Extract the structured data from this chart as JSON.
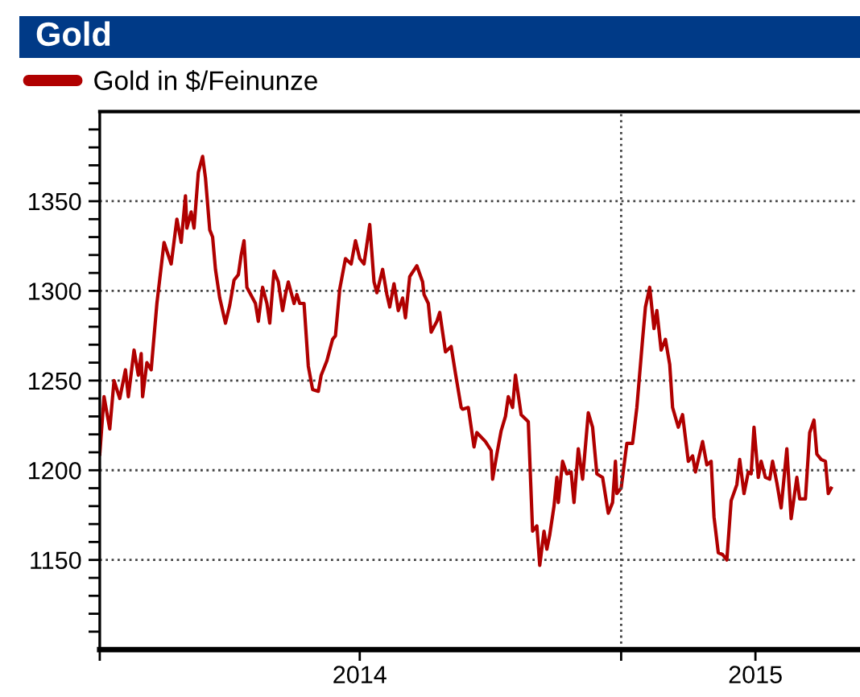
{
  "chart_data": {
    "type": "line",
    "title": "Gold",
    "x": [
      "2014-01-01",
      "2014-01-04",
      "2014-01-08",
      "2014-01-11",
      "2014-01-15",
      "2014-01-19",
      "2014-01-21",
      "2014-01-25",
      "2014-01-28",
      "2014-01-30",
      "2014-01-31",
      "2014-02-03",
      "2014-02-06",
      "2014-02-10",
      "2014-02-15",
      "2014-02-20",
      "2014-02-24",
      "2014-02-27",
      "2014-03-02",
      "2014-03-03",
      "2014-03-06",
      "2014-03-08",
      "2014-03-11",
      "2014-03-14",
      "2014-03-16",
      "2014-03-19",
      "2014-03-21",
      "2014-03-23",
      "2014-03-26",
      "2014-03-30",
      "2014-04-02",
      "2014-04-05",
      "2014-04-08",
      "2014-04-10",
      "2014-04-12",
      "2014-04-14",
      "2014-04-20",
      "2014-04-22",
      "2014-04-25",
      "2014-04-28",
      "2014-04-30",
      "2014-05-03",
      "2014-05-06",
      "2014-05-09",
      "2014-05-11",
      "2014-05-13",
      "2014-05-17",
      "2014-05-19",
      "2014-05-21",
      "2014-05-24",
      "2014-05-27",
      "2014-05-30",
      "2014-06-03",
      "2014-06-05",
      "2014-06-09",
      "2014-06-13",
      "2014-06-15",
      "2014-06-18",
      "2014-06-22",
      "2014-06-26",
      "2014-06-29",
      "2014-07-02",
      "2014-07-05",
      "2014-07-09",
      "2014-07-12",
      "2014-07-14",
      "2014-07-18",
      "2014-07-21",
      "2014-07-23",
      "2014-07-26",
      "2014-07-29",
      "2014-08-01",
      "2014-08-03",
      "2014-08-06",
      "2014-08-11",
      "2014-08-15",
      "2014-08-16",
      "2014-08-19",
      "2014-08-21",
      "2014-08-25",
      "2014-08-27",
      "2014-08-31",
      "2014-09-04",
      "2014-09-07",
      "2014-09-11",
      "2014-09-12",
      "2014-09-16",
      "2014-09-20",
      "2014-09-22",
      "2014-09-28",
      "2014-10-02",
      "2014-10-03",
      "2014-10-06",
      "2014-10-09",
      "2014-10-12",
      "2014-10-14",
      "2014-10-17",
      "2014-10-19",
      "2014-10-23",
      "2014-10-28",
      "2014-10-31",
      "2014-11-03",
      "2014-11-05",
      "2014-11-08",
      "2014-11-10",
      "2014-11-12",
      "2014-11-15",
      "2014-11-17",
      "2014-11-18",
      "2014-11-21",
      "2014-11-24",
      "2014-11-27",
      "2014-11-29",
      "2014-12-02",
      "2014-12-05",
      "2014-12-09",
      "2014-12-12",
      "2014-12-15",
      "2014-12-19",
      "2014-12-23",
      "2014-12-26",
      "2014-12-28",
      "2014-12-29",
      "2015-01-01",
      "2015-01-05",
      "2015-01-09",
      "2015-01-12",
      "2015-01-16",
      "2015-01-18",
      "2015-01-21",
      "2015-01-24",
      "2015-01-26",
      "2015-01-29",
      "2015-02-01",
      "2015-02-04",
      "2015-02-06",
      "2015-02-10",
      "2015-02-13",
      "2015-02-17",
      "2015-02-20",
      "2015-02-22",
      "2015-02-27",
      "2015-03-02",
      "2015-03-05",
      "2015-03-07",
      "2015-03-10",
      "2015-03-13",
      "2015-03-16",
      "2015-03-19",
      "2015-03-23",
      "2015-03-25",
      "2015-03-28",
      "2015-03-31",
      "2015-04-02",
      "2015-04-04",
      "2015-04-07",
      "2015-04-09",
      "2015-04-12",
      "2015-04-15",
      "2015-04-17",
      "2015-04-20",
      "2015-04-23",
      "2015-04-27",
      "2015-04-30",
      "2015-05-04",
      "2015-05-06",
      "2015-05-10",
      "2015-05-13",
      "2015-05-16",
      "2015-05-18",
      "2015-05-21",
      "2015-05-24",
      "2015-05-26",
      "2015-05-28"
    ],
    "series": [
      {
        "name": "Gold in $/Feinunze",
        "color": "#b00000",
        "values": [
          1209,
          1241,
          1223,
          1250,
          1240,
          1256,
          1241,
          1267,
          1253,
          1265,
          1241,
          1260,
          1256,
          1293,
          1327,
          1315,
          1340,
          1327,
          1353,
          1335,
          1344,
          1335,
          1366,
          1375,
          1363,
          1334,
          1330,
          1312,
          1296,
          1282,
          1292,
          1306,
          1309,
          1320,
          1328,
          1302,
          1293,
          1283,
          1302,
          1293,
          1282,
          1311,
          1305,
          1289,
          1298,
          1305,
          1293,
          1298,
          1293,
          1293,
          1258,
          1245,
          1244,
          1253,
          1261,
          1273,
          1275,
          1301,
          1318,
          1315,
          1328,
          1318,
          1315,
          1337,
          1305,
          1299,
          1312,
          1298,
          1291,
          1304,
          1289,
          1296,
          1285,
          1308,
          1314,
          1305,
          1298,
          1293,
          1277,
          1283,
          1288,
          1266,
          1269,
          1254,
          1235,
          1234,
          1235,
          1213,
          1221,
          1216,
          1211,
          1195,
          1209,
          1222,
          1230,
          1241,
          1235,
          1253,
          1231,
          1227,
          1166,
          1169,
          1147,
          1166,
          1156,
          1164,
          1180,
          1196,
          1182,
          1205,
          1198,
          1199,
          1182,
          1212,
          1195,
          1232,
          1224,
          1198,
          1196,
          1176,
          1182,
          1205,
          1187,
          1190,
          1215,
          1215,
          1235,
          1273,
          1291,
          1302,
          1279,
          1289,
          1267,
          1273,
          1259,
          1235,
          1224,
          1231,
          1205,
          1208,
          1199,
          1216,
          1203,
          1205,
          1174,
          1154,
          1153,
          1150,
          1183,
          1192,
          1206,
          1187,
          1199,
          1198,
          1224,
          1196,
          1205,
          1196,
          1195,
          1205,
          1193,
          1179,
          1212,
          1173,
          1196,
          1184,
          1184,
          1221,
          1228,
          1209,
          1206,
          1205,
          1187,
          1190
        ]
      }
    ],
    "xlim": [
      "2014-01-01",
      "2015-06-16"
    ],
    "xticks": [
      {
        "value": "2014-01-01",
        "label": null
      },
      {
        "value": "2014-07-02",
        "label": "2014"
      },
      {
        "value": "2015-01-01",
        "label": null
      },
      {
        "value": "2015-04-05",
        "label": "2015"
      }
    ],
    "ylim": [
      1100,
      1400
    ],
    "yticks": [
      {
        "value": 1110,
        "label": null
      },
      {
        "value": 1120,
        "label": null
      },
      {
        "value": 1130,
        "label": null
      },
      {
        "value": 1140,
        "label": null
      },
      1150,
      {
        "value": 1160,
        "label": null
      },
      {
        "value": 1170,
        "label": null
      },
      {
        "value": 1180,
        "label": null
      },
      {
        "value": 1190,
        "label": null
      },
      1200,
      {
        "value": 1210,
        "label": null
      },
      {
        "value": 1220,
        "label": null
      },
      {
        "value": 1230,
        "label": null
      },
      {
        "value": 1240,
        "label": null
      },
      1250,
      {
        "value": 1260,
        "label": null
      },
      {
        "value": 1270,
        "label": null
      },
      {
        "value": 1280,
        "label": null
      },
      {
        "value": 1290,
        "label": null
      },
      1300,
      {
        "value": 1310,
        "label": null
      },
      {
        "value": 1320,
        "label": null
      },
      {
        "value": 1330,
        "label": null
      },
      {
        "value": 1340,
        "label": null
      },
      1350,
      {
        "value": 1360,
        "label": null
      },
      {
        "value": 1370,
        "label": null
      },
      {
        "value": 1380,
        "label": null
      },
      {
        "value": 1390,
        "label": null
      }
    ],
    "grid": "y",
    "ref_lines": [
      {
        "axis": "x",
        "value": "2015-01-01",
        "line_style": "dotted",
        "color": "#444444"
      }
    ],
    "legend": "top left",
    "line_style": "solid",
    "marker": "none"
  }
}
